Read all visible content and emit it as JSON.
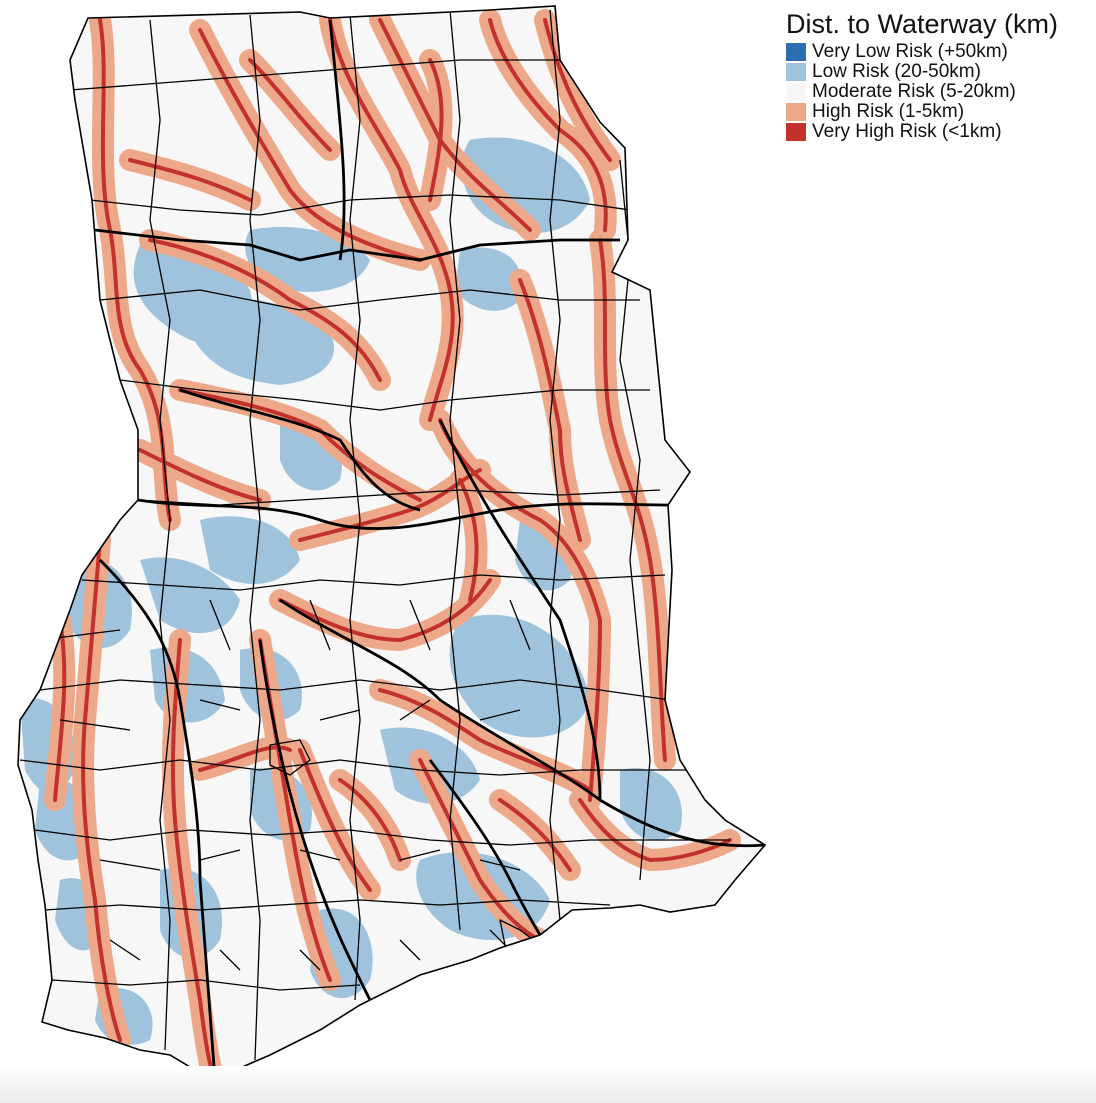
{
  "legend": {
    "title": "Dist. to Waterway (km)",
    "items": [
      {
        "label": "Very Low Risk (+50km)",
        "color": "#2c6fb0"
      },
      {
        "label": "Low Risk (20-50km)",
        "color": "#9fc3dd"
      },
      {
        "label": "Moderate Risk (5-20km)",
        "color": "#f7f7f7"
      },
      {
        "label": "High Risk (1-5km)",
        "color": "#eda88a"
      },
      {
        "label": "Very High Risk (<1km)",
        "color": "#c3312d"
      }
    ]
  },
  "map": {
    "region": "Ghana",
    "boundary_color": "#000000"
  }
}
